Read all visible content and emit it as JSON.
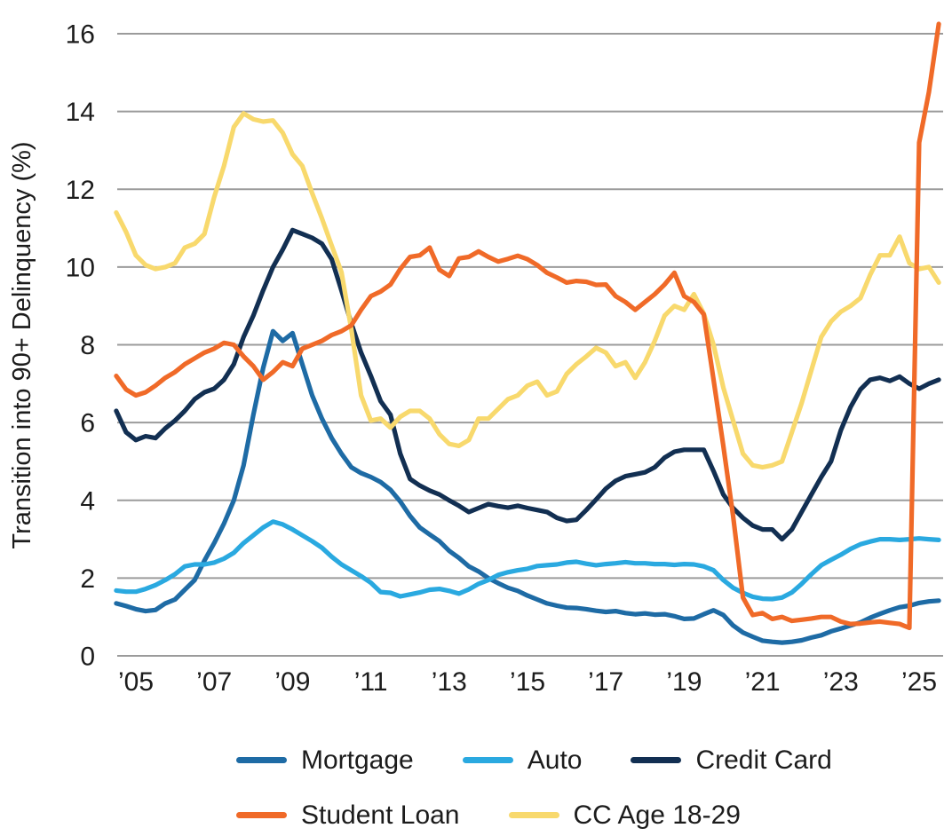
{
  "chart_data": {
    "type": "line",
    "title": "",
    "ylabel": "Transition into 90+ Delinquency (%)",
    "xlabel": "",
    "ylim": [
      0,
      16
    ],
    "grid": "horizontal",
    "legend_position": "bottom",
    "yticks": [
      0,
      2,
      4,
      6,
      8,
      10,
      12,
      14,
      16
    ],
    "xtick_years": [
      2005,
      2007,
      2009,
      2011,
      2013,
      2015,
      2017,
      2019,
      2021,
      2023,
      2025
    ],
    "xtick_labels": [
      "’05",
      "’07",
      "’09",
      "’11",
      "’13",
      "’15",
      "’17",
      "’19",
      "’21",
      "’23",
      "’25"
    ],
    "x_start": 2004.5,
    "x_step": 0.25,
    "x_end": 2025.5,
    "x_unit": "year (quarterly)",
    "z_order": [
      0,
      1,
      2,
      4,
      3
    ],
    "series": [
      {
        "name": "Mortgage",
        "color": "#1e6ba5",
        "values": [
          1.35,
          1.28,
          1.2,
          1.15,
          1.18,
          1.35,
          1.45,
          1.7,
          1.95,
          2.45,
          2.9,
          3.4,
          4.0,
          4.9,
          6.2,
          7.4,
          8.35,
          8.1,
          8.3,
          7.5,
          6.7,
          6.1,
          5.6,
          5.2,
          4.85,
          4.7,
          4.6,
          4.47,
          4.27,
          3.97,
          3.6,
          3.3,
          3.12,
          2.95,
          2.7,
          2.52,
          2.3,
          2.17,
          2.0,
          1.87,
          1.75,
          1.67,
          1.55,
          1.45,
          1.35,
          1.29,
          1.24,
          1.23,
          1.2,
          1.16,
          1.13,
          1.15,
          1.1,
          1.07,
          1.09,
          1.06,
          1.07,
          1.02,
          0.95,
          0.96,
          1.07,
          1.17,
          1.05,
          0.78,
          0.6,
          0.49,
          0.39,
          0.36,
          0.34,
          0.36,
          0.4,
          0.47,
          0.53,
          0.63,
          0.7,
          0.78,
          0.86,
          0.98,
          1.08,
          1.17,
          1.25,
          1.29,
          1.36,
          1.4,
          1.42
        ]
      },
      {
        "name": "Auto",
        "color": "#2aa9e0",
        "values": [
          1.68,
          1.65,
          1.65,
          1.72,
          1.82,
          1.95,
          2.1,
          2.3,
          2.35,
          2.35,
          2.4,
          2.5,
          2.65,
          2.9,
          3.1,
          3.3,
          3.45,
          3.38,
          3.25,
          3.1,
          2.95,
          2.78,
          2.55,
          2.35,
          2.2,
          2.05,
          1.88,
          1.64,
          1.62,
          1.53,
          1.58,
          1.63,
          1.7,
          1.72,
          1.67,
          1.6,
          1.71,
          1.85,
          1.95,
          2.08,
          2.15,
          2.2,
          2.24,
          2.31,
          2.33,
          2.35,
          2.4,
          2.42,
          2.37,
          2.33,
          2.36,
          2.38,
          2.41,
          2.38,
          2.38,
          2.36,
          2.36,
          2.34,
          2.36,
          2.35,
          2.3,
          2.2,
          1.95,
          1.75,
          1.62,
          1.52,
          1.47,
          1.46,
          1.5,
          1.63,
          1.85,
          2.1,
          2.33,
          2.47,
          2.6,
          2.75,
          2.87,
          2.94,
          3.0,
          3.0,
          2.98,
          3.0,
          3.02,
          3.0,
          2.98
        ]
      },
      {
        "name": "Credit Card",
        "color": "#122f52",
        "values": [
          6.3,
          5.75,
          5.55,
          5.65,
          5.6,
          5.85,
          6.05,
          6.3,
          6.6,
          6.78,
          6.87,
          7.1,
          7.5,
          8.2,
          8.75,
          9.4,
          10.0,
          10.45,
          10.95,
          10.85,
          10.75,
          10.6,
          10.2,
          9.4,
          8.55,
          7.8,
          7.2,
          6.55,
          6.2,
          5.2,
          4.55,
          4.38,
          4.25,
          4.15,
          4.0,
          3.86,
          3.7,
          3.8,
          3.9,
          3.85,
          3.81,
          3.86,
          3.8,
          3.75,
          3.7,
          3.55,
          3.47,
          3.5,
          3.75,
          4.02,
          4.3,
          4.5,
          4.62,
          4.67,
          4.72,
          4.85,
          5.1,
          5.25,
          5.3,
          5.3,
          5.3,
          4.75,
          4.15,
          3.8,
          3.55,
          3.35,
          3.25,
          3.25,
          3.0,
          3.25,
          3.7,
          4.15,
          4.6,
          5.0,
          5.8,
          6.4,
          6.85,
          7.1,
          7.15,
          7.07,
          7.18,
          7.0,
          6.87,
          7.0,
          7.1
        ]
      },
      {
        "name": "Student Loan",
        "color": "#f06a28",
        "values": [
          7.2,
          6.85,
          6.7,
          6.78,
          6.95,
          7.15,
          7.3,
          7.5,
          7.65,
          7.8,
          7.9,
          8.05,
          8.0,
          7.7,
          7.45,
          7.1,
          7.3,
          7.55,
          7.45,
          7.9,
          8.0,
          8.1,
          8.25,
          8.35,
          8.5,
          8.9,
          9.25,
          9.37,
          9.55,
          9.95,
          10.26,
          10.3,
          10.5,
          9.93,
          9.77,
          10.22,
          10.26,
          10.4,
          10.26,
          10.14,
          10.21,
          10.29,
          10.2,
          10.05,
          9.85,
          9.73,
          9.6,
          9.64,
          9.62,
          9.54,
          9.55,
          9.25,
          9.1,
          8.9,
          9.1,
          9.3,
          9.55,
          9.85,
          9.25,
          9.1,
          8.78,
          7.1,
          5.4,
          3.6,
          1.5,
          1.05,
          1.1,
          0.95,
          1.0,
          0.9,
          0.93,
          0.96,
          1.0,
          1.0,
          0.88,
          0.82,
          0.83,
          0.86,
          0.88,
          0.85,
          0.82,
          0.72,
          13.2,
          14.5,
          16.25
        ]
      },
      {
        "name": "CC Age 18-29",
        "color": "#f8d96d",
        "values": [
          11.4,
          10.9,
          10.3,
          10.05,
          9.95,
          10.0,
          10.1,
          10.5,
          10.6,
          10.85,
          11.8,
          12.6,
          13.6,
          13.95,
          13.8,
          13.74,
          13.77,
          13.45,
          12.9,
          12.6,
          11.9,
          11.25,
          10.55,
          9.87,
          8.4,
          6.7,
          6.05,
          6.1,
          5.87,
          6.15,
          6.3,
          6.3,
          6.1,
          5.7,
          5.45,
          5.4,
          5.55,
          6.1,
          6.1,
          6.35,
          6.6,
          6.7,
          6.95,
          7.05,
          6.7,
          6.8,
          7.25,
          7.5,
          7.7,
          7.92,
          7.8,
          7.45,
          7.55,
          7.15,
          7.55,
          8.1,
          8.75,
          9.0,
          8.9,
          9.3,
          8.8,
          8.0,
          6.9,
          6.05,
          5.2,
          4.9,
          4.85,
          4.9,
          5.0,
          5.75,
          6.5,
          7.35,
          8.2,
          8.6,
          8.85,
          9.0,
          9.2,
          9.8,
          10.3,
          10.3,
          10.78,
          10.1,
          9.95,
          10.0,
          9.6
        ]
      }
    ]
  },
  "legend": {
    "rows": [
      [
        0,
        1,
        2
      ],
      [
        3,
        4
      ]
    ]
  }
}
